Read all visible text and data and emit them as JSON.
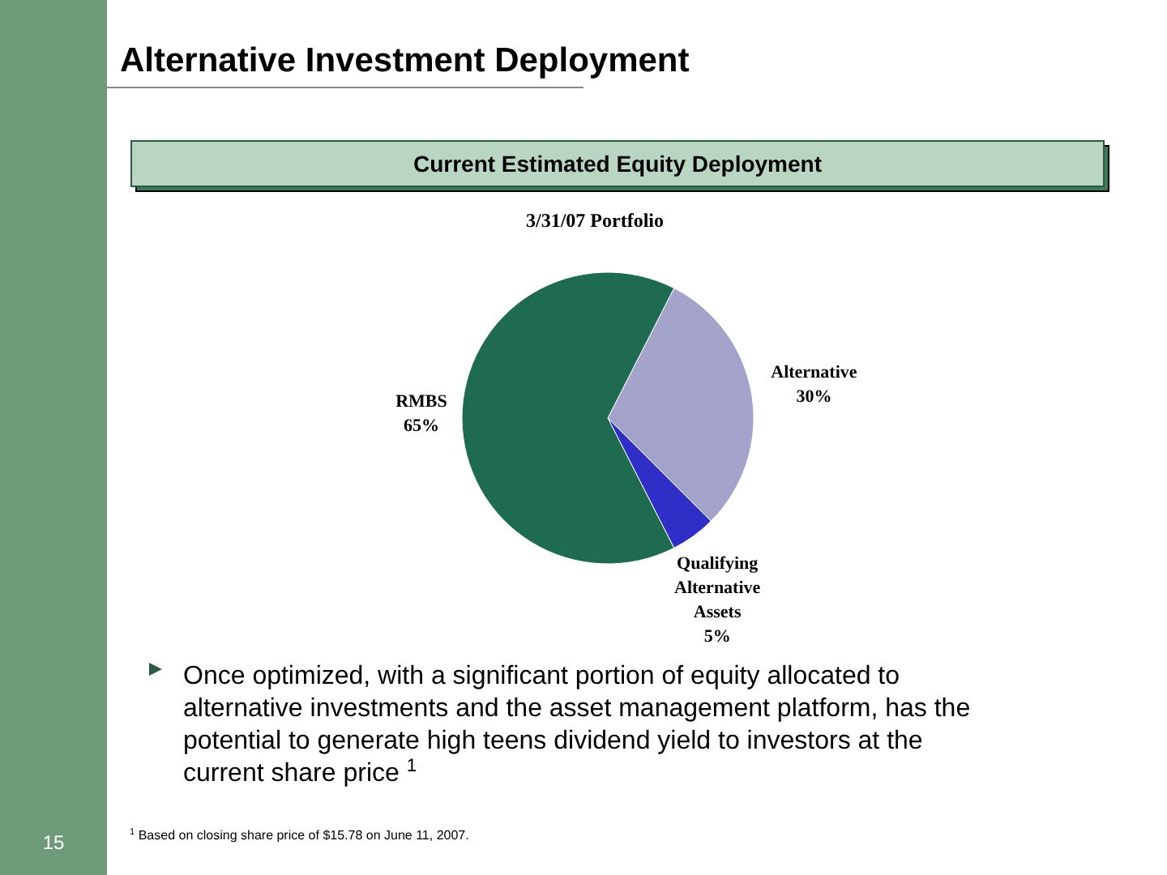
{
  "chart_data": {
    "type": "pie",
    "title": "Alternative Investment Deployment",
    "subtitle": "Current Estimated Equity Deployment",
    "categories": [
      "Alternative",
      "Qualifying Alternative Assets",
      "RMBS"
    ],
    "values": [
      30,
      5,
      65
    ],
    "colors": [
      "#a3a3cc",
      "#2f2fc8",
      "#1f6b52"
    ],
    "value_labels": [
      "30%",
      "5%",
      "65%"
    ],
    "annotations": [
      "3/31/07 Portfolio",
      "Once optimized, with a significant portion of equity allocated to alternative investments and the asset management platform, has the potential to generate high teens dividend yield to investors at the current share price $^{1}$",
      "$^{1}$ Based on closing share price of $15.78 on June 11, 2007.",
      "15"
    ]
  }
}
